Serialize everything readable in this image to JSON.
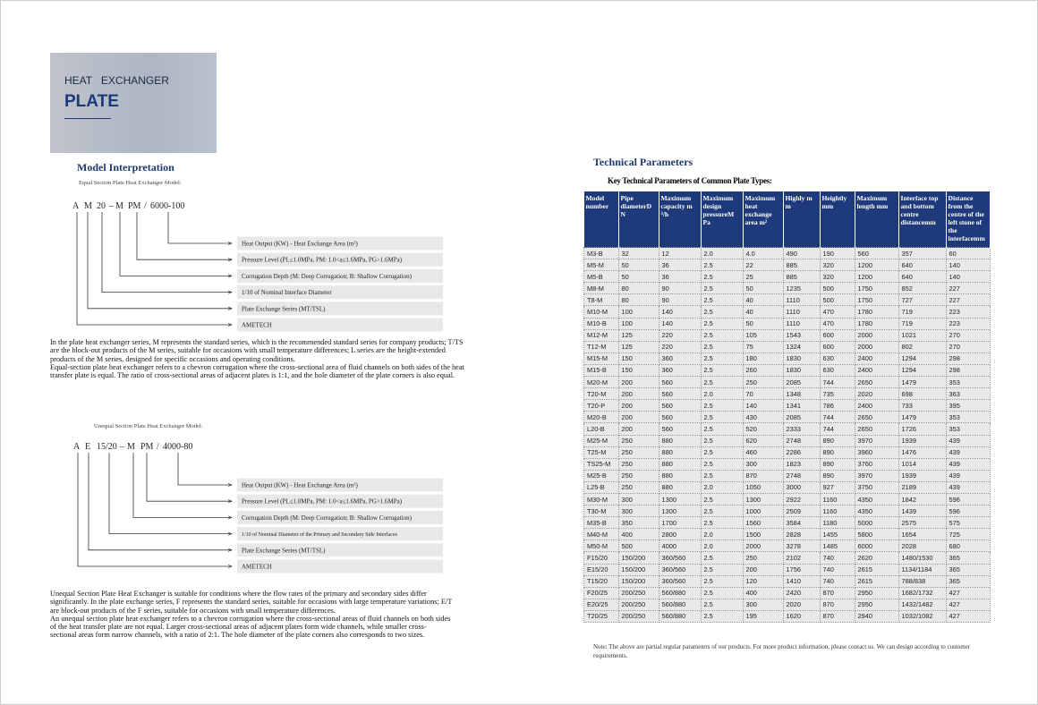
{
  "header": {
    "line1": "HEAT   EXCHANGER",
    "line2": "PLATE"
  },
  "model_interpretation": {
    "title": "Model Interpretation",
    "equal": {
      "subtitle": "Equal Section Plate Heat Exchanger Model:",
      "code": [
        "A",
        "M",
        "20",
        "–",
        "M",
        "PM",
        "/",
        "6000-100"
      ],
      "labels": [
        "Heat Output (KW) - Heat Exchange Area (m²)",
        "Pressure Level (PL≤1.0MPa, PM: 1.0<a≤1.6MPa, PG>1.6MPa)",
        "Corrugation Depth (M: Deep Corrugation; B: Shallow Corrugation)",
        "1/10 of Nominal Interface Diameter",
        "Plate Exchange Series (MT/TSL)",
        "AMETECH"
      ],
      "paragraphs": [
        "In the plate heat exchanger series, M represents the standard series, which is the recommended standard series for company products; T/TS are the block-out products of the M series, suitable for occasions with small temperature differences; L series are the height-extended products of the M series, designed for specific occasions and operating conditions.",
        "Equal-section plate heat exchanger refers to a chevron corrugation where the cross-sectional area of fluid channels on both sides of the heat transfer plate is equal.  The ratio of cross-sectional areas of adjacent plates is 1:1, and the hole diameter of the plate corners is also equal."
      ]
    },
    "unequal": {
      "subtitle": "Unequal Section Plate Heat Exchanger Model:",
      "code": [
        "A",
        "E",
        "15/20",
        "–",
        "M",
        "PM",
        "/",
        "4000-80"
      ],
      "labels": [
        "Heat Output (KW) - Heat Exchange Area (m²)",
        "Pressure Level (PL≤1.0MPa, PM: 1.0<a≤1.6MPa, PG>1.6MPa)",
        "Corrugation Depth (M: Deep Corrugation; B: Shallow Corrugation)",
        "1/10 of Nominal Diameter of the Primary and Secondary Side Interfaces",
        "Plate Exchange Series (MT/TSL)",
        "AMETECH"
      ],
      "paragraphs": [
        "Unequal Section Plate Heat Exchanger is suitable for conditions where the flow rates of the primary and secondary sides differ significantly. In the plate exchange series, F represents the standard series, suitable for occasions with large temperature variations; E/T are block-out products of the F series, suitable for occasions with small temperature differences.",
        "An unequal section plate heat exchanger refers to a chevron corrugation where the cross-sectional areas of fluid channels on both sides of the heat transfer plate are not equal. Larger cross-sectional areas of adjacent plates form wide channels, while smaller cross-sectional areas form narrow channels, with a ratio of 2:1. The hole diameter of the plate corners also corresponds to two sizes."
      ]
    }
  },
  "technical": {
    "title": "Technical Parameters",
    "caption": "Key Technical Parameters of Common Plate Types:",
    "headers": [
      "Model number",
      "Pipe diameterD N",
      "Maximum capacity m ³/h",
      "Maximum design pressureM Pa",
      "Maximum heat exchange area m²",
      "Highly m m",
      "Heightly mm",
      "Maximum length mm",
      "Interface top and bottom centre distancemm",
      "Distance from the centre of the left stone of the interfacemm"
    ],
    "rows": [
      [
        "M3-B",
        "32",
        "12",
        "2.0",
        "4.0",
        "490",
        "190",
        "560",
        "357",
        "60"
      ],
      [
        "M5-M",
        "50",
        "36",
        "2.5",
        "22",
        "885",
        "320",
        "1200",
        "640",
        "140"
      ],
      [
        "M5-B",
        "50",
        "36",
        "2.5",
        "25",
        "885",
        "320",
        "1200",
        "640",
        "140"
      ],
      [
        "M8-M",
        "80",
        "90",
        "2.5",
        "50",
        "1235",
        "500",
        "1750",
        "852",
        "227"
      ],
      [
        "T8-M",
        "80",
        "90",
        "2.5",
        "40",
        "1110",
        "500",
        "1750",
        "727",
        "227"
      ],
      [
        "M10-M",
        "100",
        "140",
        "2.5",
        "40",
        "1110",
        "470",
        "1780",
        "719",
        "223"
      ],
      [
        "M10-B",
        "100",
        "140",
        "2.5",
        "50",
        "1110",
        "470",
        "1780",
        "719",
        "223"
      ],
      [
        "M12-M",
        "125",
        "220",
        "2.5",
        "105",
        "1543",
        "600",
        "2000",
        "1021",
        "270"
      ],
      [
        "T12-M",
        "125",
        "220",
        "2.5",
        "75",
        "1324",
        "600",
        "2000",
        "802",
        "270"
      ],
      [
        "M15-M",
        "150",
        "360",
        "2.5",
        "180",
        "1830",
        "630",
        "2400",
        "1294",
        "298"
      ],
      [
        "M15-B",
        "150",
        "360",
        "2.5",
        "260",
        "1830",
        "630",
        "2400",
        "1294",
        "298"
      ],
      [
        "M20-M",
        "200",
        "560",
        "2.5",
        "250",
        "2085",
        "744",
        "2650",
        "1479",
        "353"
      ],
      [
        "T20-M",
        "200",
        "560",
        "2.0",
        "70",
        "1348",
        "735",
        "2020",
        "698",
        "363"
      ],
      [
        "T20-P",
        "200",
        "560",
        "2.5",
        "140",
        "1341",
        "786",
        "2400",
        "733",
        "395"
      ],
      [
        "M20-B",
        "200",
        "560",
        "2.5",
        "430",
        "2085",
        "744",
        "2650",
        "1479",
        "353"
      ],
      [
        "L20-B",
        "200",
        "560",
        "2.5",
        "520",
        "2333",
        "744",
        "2650",
        "1726",
        "353"
      ],
      [
        "M25-M",
        "250",
        "880",
        "2.5",
        "620",
        "2748",
        "890",
        "3970",
        "1939",
        "439"
      ],
      [
        "T25-M",
        "250",
        "880",
        "2.5",
        "460",
        "2286",
        "890",
        "3960",
        "1476",
        "439"
      ],
      [
        "TS25-M",
        "250",
        "880",
        "2.5",
        "300",
        "1823",
        "890",
        "3760",
        "1014",
        "439"
      ],
      [
        "M25-B",
        "250",
        "880",
        "2.5",
        "870",
        "2748",
        "890",
        "3970",
        "1939",
        "439"
      ],
      [
        "L25-B",
        "250",
        "880",
        "2.0",
        "1050",
        "3000",
        "927",
        "3750",
        "2189",
        "439"
      ],
      [
        "M30-M",
        "300",
        "1300",
        "2.5",
        "1300",
        "2922",
        "1160",
        "4350",
        "1842",
        "596"
      ],
      [
        "T30-M",
        "300",
        "1300",
        "2.5",
        "1000",
        "2509",
        "1160",
        "4350",
        "1439",
        "596"
      ],
      [
        "M35-B",
        "350",
        "1700",
        "2.5",
        "1560",
        "3584",
        "1180",
        "5000",
        "2575",
        "575"
      ],
      [
        "M40-M",
        "400",
        "2800",
        "2.0",
        "1500",
        "2828",
        "1455",
        "5800",
        "1654",
        "725"
      ],
      [
        "M50-M",
        "500",
        "4000",
        "2.0",
        "2000",
        "3278",
        "1485",
        "6000",
        "2028",
        "680"
      ],
      [
        "F15/20",
        "150/200",
        "360/560",
        "2.5",
        "250",
        "2102",
        "740",
        "2620",
        "1480/1530",
        "365"
      ],
      [
        "E15/20",
        "150/200",
        "360/560",
        "2.5",
        "200",
        "1756",
        "740",
        "2615",
        "1134/1184",
        "365"
      ],
      [
        "T15/20",
        "150/200",
        "360/560",
        "2.5",
        "120",
        "1410",
        "740",
        "2615",
        "788/838",
        "365"
      ],
      [
        "F20/25",
        "200/250",
        "560/880",
        "2.5",
        "400",
        "2420",
        "870",
        "2950",
        "1682/1732",
        "427"
      ],
      [
        "E20/25",
        "200/250",
        "560/880",
        "2.5",
        "300",
        "2020",
        "870",
        "2950",
        "1432/1482",
        "427"
      ],
      [
        "T20/25",
        "200/250",
        "560/880",
        "2.5",
        "195",
        "1620",
        "870",
        "2940",
        "1032/1082",
        "427"
      ]
    ],
    "note": "Note: The above are partial regular parameters of our products. For more product information, please contact us. We can design according to customer requirements."
  }
}
